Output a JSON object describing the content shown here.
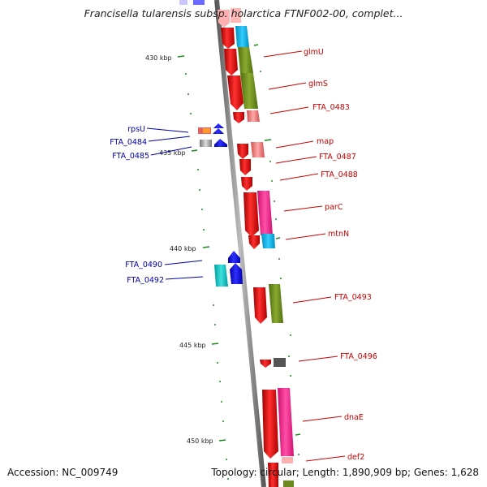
{
  "title": "Francisella tularensis subsp. holarctica FTNF002-00, complet...",
  "footer": {
    "accession": "Accession: NC_009749",
    "summary": "Topology: circular; Length: 1,890,909 bp; Genes: 1,628"
  },
  "ticks": [
    {
      "label": "430 kbp"
    },
    {
      "label": "435 kbp"
    },
    {
      "label": "440 kbp"
    },
    {
      "label": "445 kbp"
    },
    {
      "label": "450 kbp"
    }
  ],
  "genes_right": [
    {
      "name": "glmU"
    },
    {
      "name": "glmS"
    },
    {
      "name": "FTA_0483"
    },
    {
      "name": "map"
    },
    {
      "name": "FTA_0487"
    },
    {
      "name": "FTA_0488"
    },
    {
      "name": "parC"
    },
    {
      "name": "mtnN"
    },
    {
      "name": "FTA_0493"
    },
    {
      "name": "FTA_0496"
    },
    {
      "name": "dnaE"
    },
    {
      "name": "def2"
    }
  ],
  "genes_left": [
    {
      "name": "rpsU"
    },
    {
      "name": "FTA_0484"
    },
    {
      "name": "FTA_0485"
    },
    {
      "name": "FTA_0490"
    },
    {
      "name": "FTA_0492"
    }
  ],
  "colors": {
    "forward_strand": "#e00000",
    "reverse_strand": "#1010e0",
    "backbone": "#808080",
    "tick": "#1a8a1a",
    "label_right": "#cc0000",
    "label_left": "#0000aa"
  }
}
